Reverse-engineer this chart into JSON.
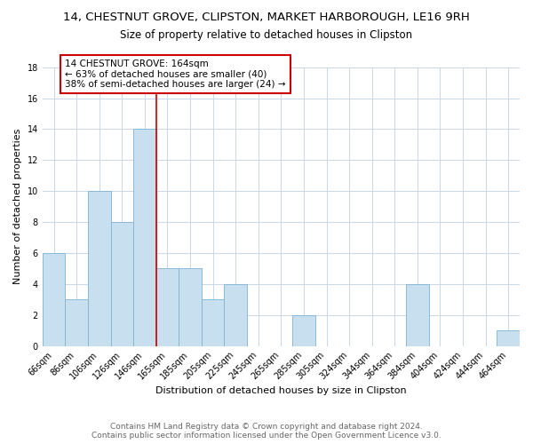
{
  "title": "14, CHESTNUT GROVE, CLIPSTON, MARKET HARBOROUGH, LE16 9RH",
  "subtitle": "Size of property relative to detached houses in Clipston",
  "xlabel": "Distribution of detached houses by size in Clipston",
  "ylabel": "Number of detached properties",
  "bar_labels": [
    "66sqm",
    "86sqm",
    "106sqm",
    "126sqm",
    "146sqm",
    "165sqm",
    "185sqm",
    "205sqm",
    "225sqm",
    "245sqm",
    "265sqm",
    "285sqm",
    "305sqm",
    "324sqm",
    "344sqm",
    "364sqm",
    "384sqm",
    "404sqm",
    "424sqm",
    "444sqm",
    "464sqm"
  ],
  "bar_values": [
    6,
    3,
    10,
    8,
    14,
    5,
    5,
    3,
    4,
    0,
    0,
    2,
    0,
    0,
    0,
    0,
    4,
    0,
    0,
    0,
    1
  ],
  "bar_color": "#c8dff0",
  "bar_edge_color": "#7fb3d3",
  "vline_color": "#cc0000",
  "annotation_text": "14 CHESTNUT GROVE: 164sqm\n← 63% of detached houses are smaller (40)\n38% of semi-detached houses are larger (24) →",
  "annotation_box_color": "#ffffff",
  "annotation_box_edge": "#cc0000",
  "ylim": [
    0,
    18
  ],
  "yticks": [
    0,
    2,
    4,
    6,
    8,
    10,
    12,
    14,
    16,
    18
  ],
  "footer_line1": "Contains HM Land Registry data © Crown copyright and database right 2024.",
  "footer_line2": "Contains public sector information licensed under the Open Government Licence v3.0.",
  "background_color": "#ffffff",
  "grid_color": "#c8d8ea",
  "title_fontsize": 9.5,
  "subtitle_fontsize": 8.5,
  "axis_label_fontsize": 8,
  "tick_fontsize": 7,
  "annotation_fontsize": 7.5,
  "footer_fontsize": 6.5
}
